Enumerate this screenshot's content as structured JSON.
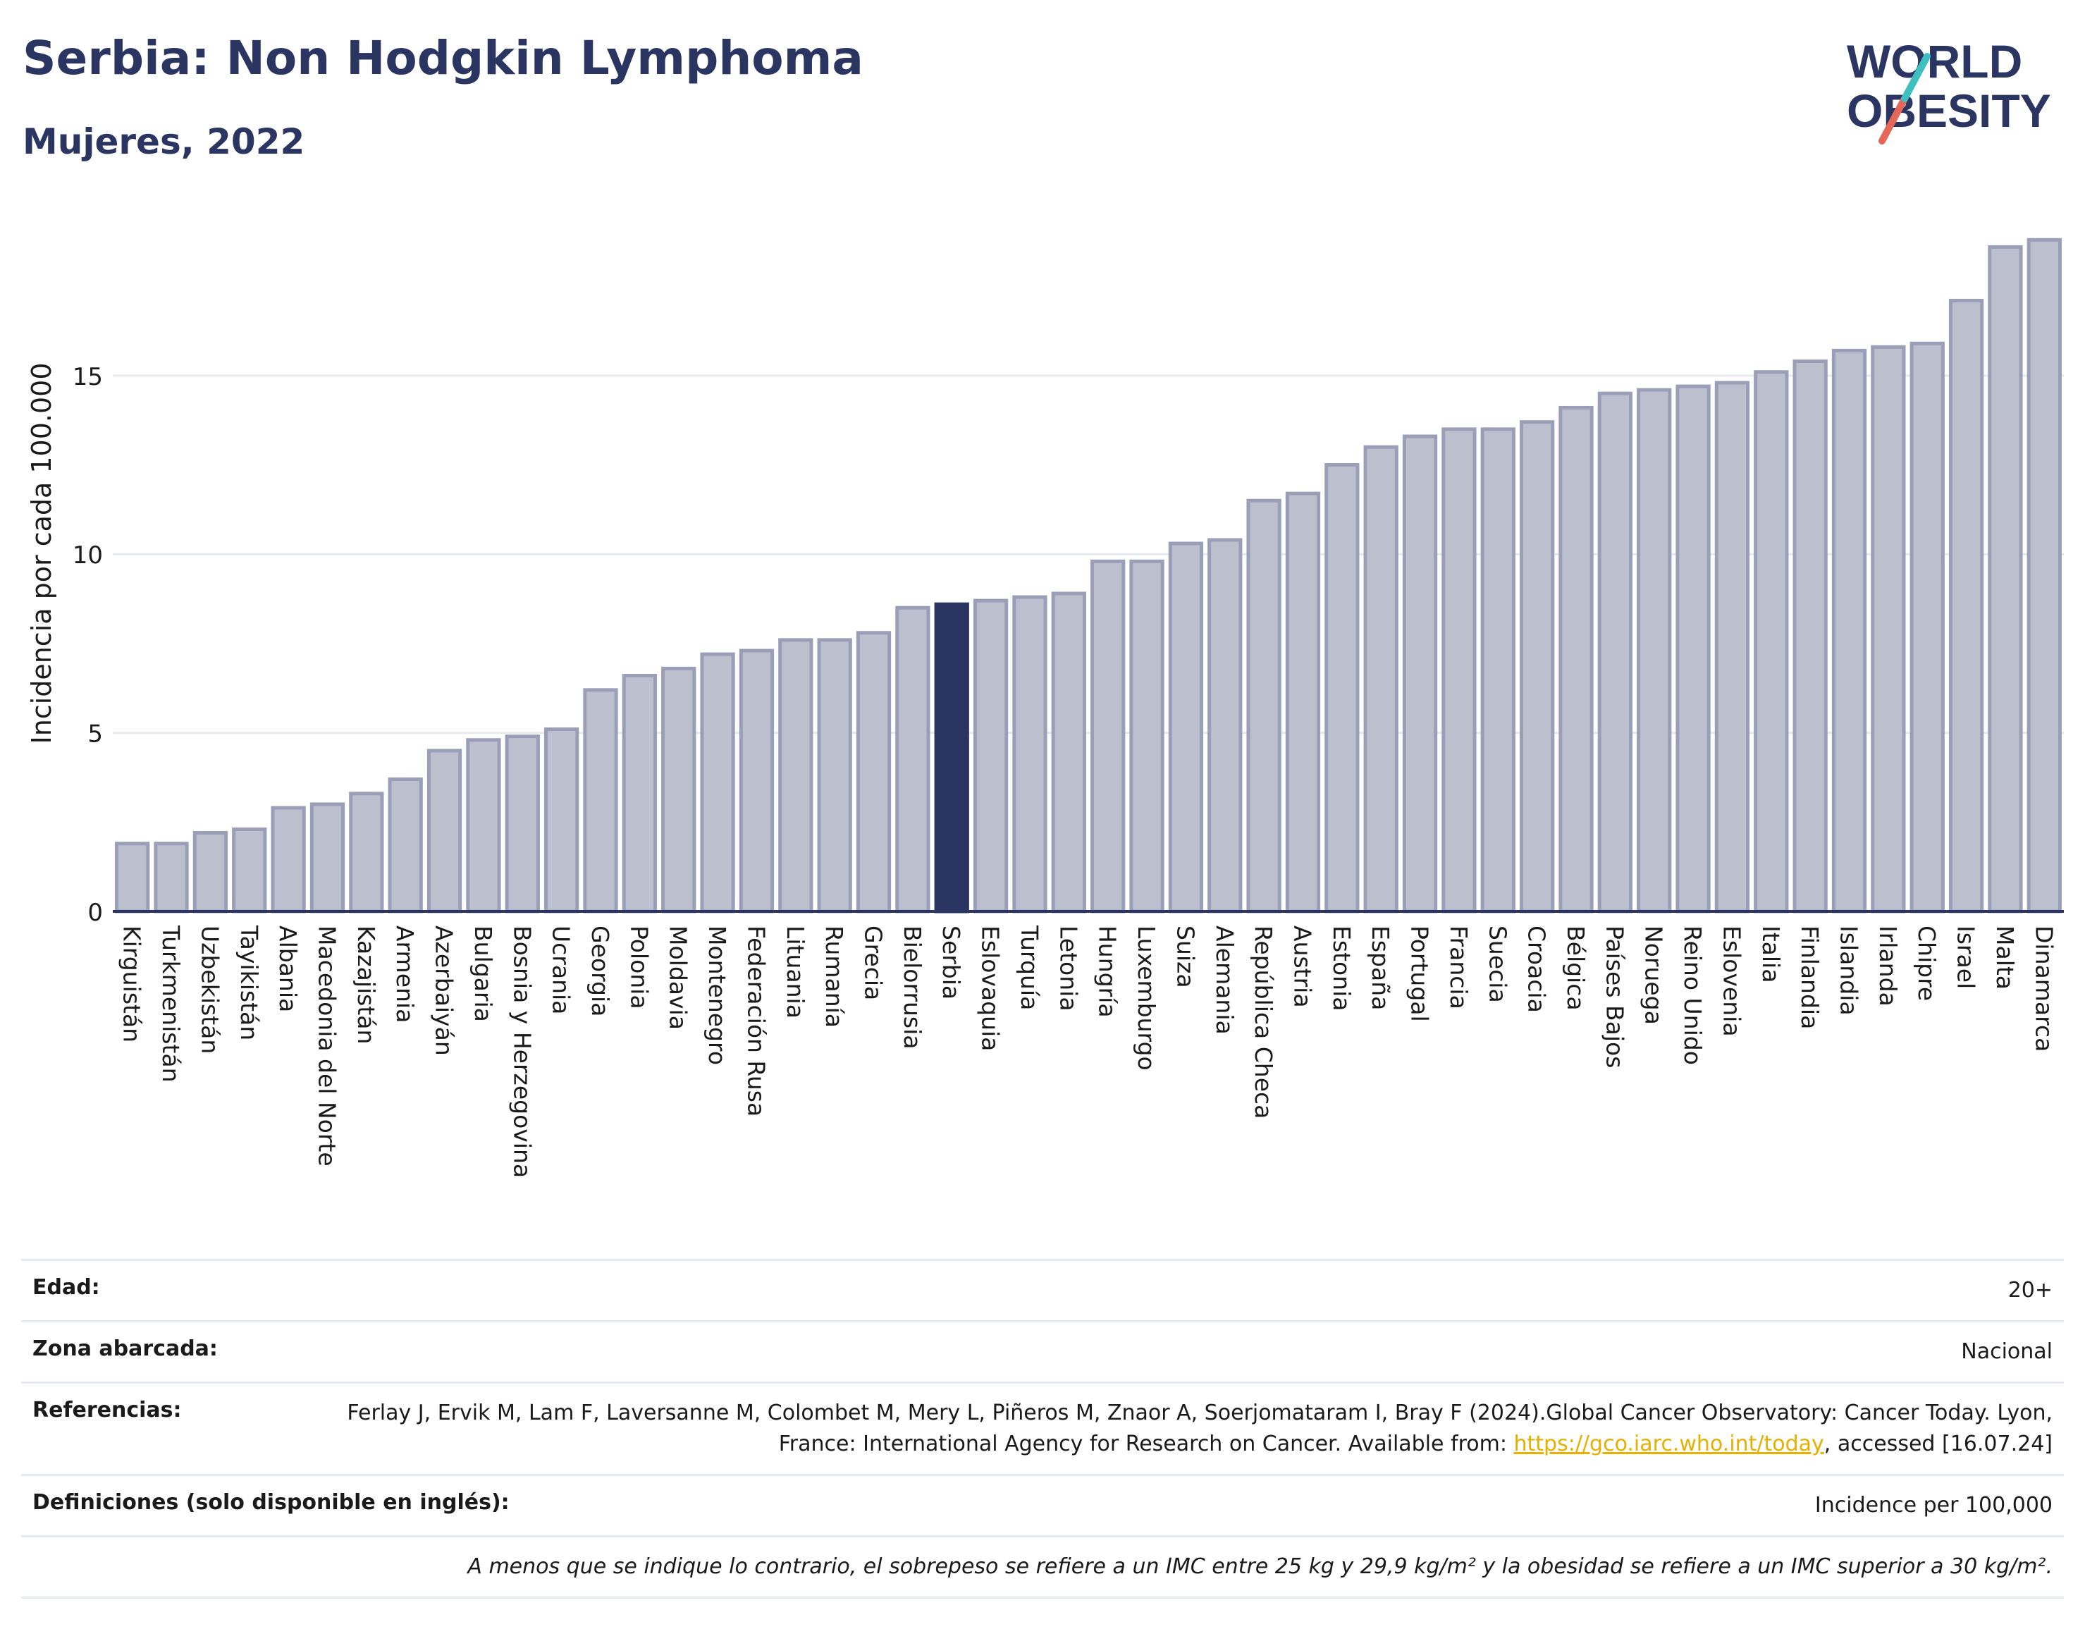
{
  "header": {
    "title": "Serbia: Non Hodgkin Lymphoma",
    "subtitle": "Mujeres, 2022"
  },
  "logo": {
    "line1": "WORLD",
    "line2": "OBESITY"
  },
  "colors": {
    "highlight": "#2b3561",
    "bar_fill": "#bcc0ce",
    "bar_stroke": "#9a9fb7",
    "grid": "#e8eaf0",
    "link": "#e6b000",
    "logo_teal": "#3fbfbf",
    "logo_red": "#e4675a"
  },
  "chart_data": {
    "type": "bar",
    "ylabel": "Incidencia por cada 100.000",
    "xlabel": "",
    "ylim": [
      0,
      19.2
    ],
    "yticks": [
      0,
      5,
      10,
      15
    ],
    "grid": true,
    "highlight": "Serbia",
    "categories": [
      "Kirguistán",
      "Turkmenistán",
      "Uzbekistán",
      "Tayikistán",
      "Albania",
      "Macedonia del Norte",
      "Kazajistán",
      "Armenia",
      "Azerbaiyán",
      "Bulgaria",
      "Bosnia y Herzegovina",
      "Ucrania",
      "Georgia",
      "Polonia",
      "Moldavia",
      "Montenegro",
      "Federación Rusa",
      "Lituania",
      "Rumanía",
      "Grecia",
      "Bielorrusia",
      "Serbia",
      "Eslovaquia",
      "Turquía",
      "Letonia",
      "Hungría",
      "Luxemburgo",
      "Suiza",
      "Alemania",
      "República Checa",
      "Austria",
      "Estonia",
      "España",
      "Portugal",
      "Francia",
      "Suecia",
      "Croacia",
      "Bélgica",
      "Países Bajos",
      "Noruega",
      "Reino Unido",
      "Eslovenia",
      "Italia",
      "Finlandia",
      "Islandia",
      "Irlanda",
      "Chipre",
      "Israel",
      "Malta",
      "Dinamarca"
    ],
    "values": [
      1.9,
      1.9,
      2.2,
      2.3,
      2.9,
      3.0,
      3.3,
      3.7,
      4.5,
      4.8,
      4.9,
      5.1,
      6.2,
      6.6,
      6.8,
      7.2,
      7.3,
      7.6,
      7.6,
      7.8,
      8.5,
      8.6,
      8.7,
      8.8,
      8.9,
      9.8,
      9.8,
      10.3,
      10.4,
      11.5,
      11.7,
      12.5,
      13.0,
      13.3,
      13.5,
      13.5,
      13.7,
      14.1,
      14.5,
      14.6,
      14.7,
      14.8,
      15.1,
      15.4,
      15.7,
      15.8,
      15.9,
      17.1,
      18.6,
      18.8
    ]
  },
  "info": {
    "age_label": "Edad:",
    "age_value": "20+",
    "zone_label": "Zona abarcada:",
    "zone_value": "Nacional",
    "ref_label": "Referencias:",
    "ref_text_1": "Ferlay J, Ervik M, Lam F, Laversanne M, Colombet M, Mery L, Piñeros M, Znaor A, Soerjomataram I, Bray F (2024).Global Cancer Observatory: Cancer Today. Lyon, France: International Agency for Research on Cancer. Available from: ",
    "ref_link": "https://gco.iarc.who.int/today",
    "ref_text_2": ", accessed [16.07.24]",
    "def_label": "Definiciones (solo disponible en inglés):",
    "def_value": "Incidence per 100,000",
    "note": "A menos que se indique lo contrario, el sobrepeso se refiere a un IMC entre 25 kg y 29,9 kg/m² y la obesidad se refiere a un IMC superior a 30 kg/m²."
  }
}
